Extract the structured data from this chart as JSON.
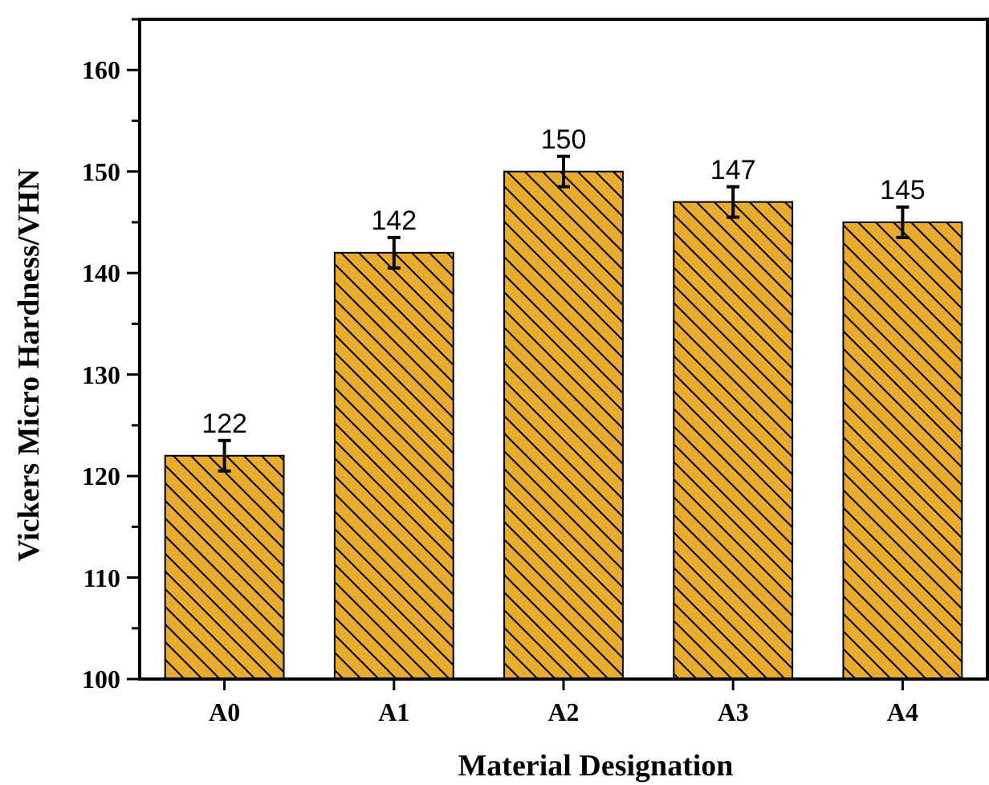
{
  "chart_data": {
    "type": "bar",
    "xlabel": "Material Designation",
    "ylabel": "Vickers Micro Hardness/VHN",
    "categories": [
      "A0",
      "A1",
      "A2",
      "A3",
      "A4"
    ],
    "values": [
      122,
      142,
      150,
      147,
      145
    ],
    "errors": [
      1.5,
      1.5,
      1.5,
      1.5,
      1.5
    ],
    "color": "#e8ab2c",
    "data_labels": true,
    "grid": false,
    "ylim": [
      100,
      165
    ],
    "yticks": [
      100,
      {
        "value": 105,
        "label": null
      },
      110,
      {
        "value": 115,
        "label": null
      },
      120,
      {
        "value": 125,
        "label": null
      },
      130,
      {
        "value": 135,
        "label": null
      },
      140,
      {
        "value": 145,
        "label": null
      },
      150,
      {
        "value": 155,
        "label": null
      },
      160,
      {
        "value": 165,
        "label": null
      }
    ]
  }
}
